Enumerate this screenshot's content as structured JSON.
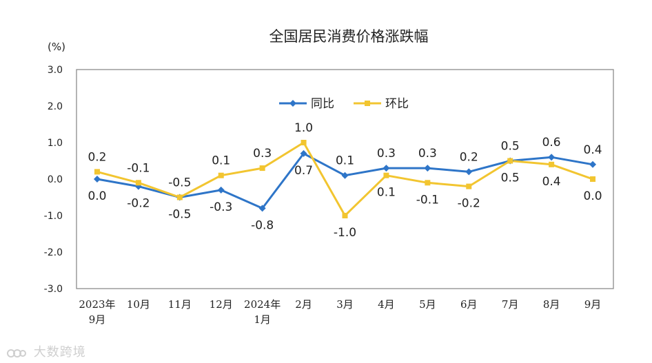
{
  "chart_data": {
    "type": "line",
    "title": "全国居民消费价格涨跌幅",
    "unit_label": "(%)",
    "ylim": [
      -3.0,
      3.0
    ],
    "yticks": [
      "3.0",
      "2.0",
      "1.0",
      "0.0",
      "-1.0",
      "-2.0",
      "-3.0"
    ],
    "categories": [
      [
        "2023年",
        "9月"
      ],
      [
        "10月"
      ],
      [
        "11月"
      ],
      [
        "12月"
      ],
      [
        "2024年",
        "1月"
      ],
      [
        "2月"
      ],
      [
        "3月"
      ],
      [
        "4月"
      ],
      [
        "5月"
      ],
      [
        "6月"
      ],
      [
        "7月"
      ],
      [
        "8月"
      ],
      [
        "9月"
      ]
    ],
    "series": [
      {
        "name": "同比",
        "color": "#2e75c8",
        "values": [
          0.0,
          -0.2,
          -0.5,
          -0.3,
          -0.8,
          0.7,
          0.1,
          0.3,
          0.3,
          0.2,
          0.5,
          0.6,
          0.4
        ],
        "labels": [
          "0.0",
          "-0.2",
          "-0.5",
          "-0.3",
          "-0.8",
          "0.7",
          "0.1",
          "0.3",
          "0.3",
          "0.2",
          "0.5",
          "0.6",
          "0.4"
        ]
      },
      {
        "name": "环比",
        "color": "#f2c530",
        "values": [
          0.2,
          -0.1,
          -0.5,
          0.1,
          0.3,
          1.0,
          -1.0,
          0.1,
          -0.1,
          -0.2,
          0.5,
          0.4,
          0.0
        ],
        "labels": [
          "0.2",
          "-0.1",
          "-0.5",
          "0.1",
          "0.3",
          "1.0",
          "-1.0",
          "0.1",
          "-0.1",
          "-0.2",
          "0.5",
          "0.4",
          "0.0"
        ]
      }
    ],
    "legend_position": "top-center"
  },
  "watermark": "大数跨境"
}
